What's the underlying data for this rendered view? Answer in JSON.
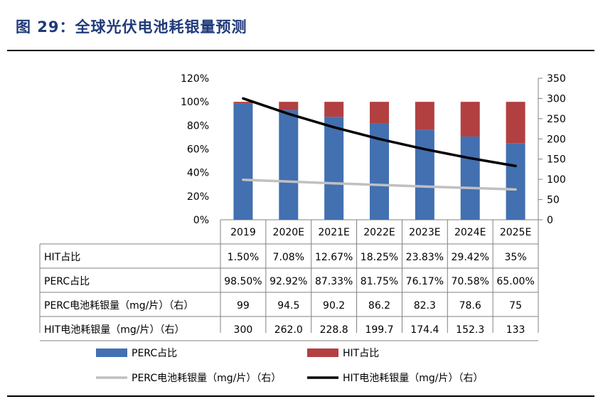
{
  "figure_title": "图 29：全球光伏电池耗银量预测",
  "colors": {
    "perc_bar": "#4270b0",
    "hit_bar": "#b24041",
    "perc_line": "#c0c0c0",
    "hit_line": "#000000",
    "title": "#1f3a7a"
  },
  "chart_data": {
    "type": "bar",
    "stacked": true,
    "categories": [
      "2019",
      "2020E",
      "2021E",
      "2022E",
      "2023E",
      "2024E",
      "2025E"
    ],
    "left_axis": {
      "ticks": [
        "0%",
        "20%",
        "40%",
        "60%",
        "80%",
        "100%",
        "120%"
      ],
      "ylim": [
        0,
        120
      ]
    },
    "right_axis": {
      "ticks": [
        "0",
        "50",
        "100",
        "150",
        "200",
        "250",
        "300",
        "350"
      ],
      "ylim": [
        0,
        350
      ]
    },
    "series": [
      {
        "name": "PERC占比",
        "kind": "bar",
        "axis": "left",
        "values": [
          98.5,
          92.92,
          87.33,
          81.75,
          76.17,
          70.58,
          65.0
        ]
      },
      {
        "name": "HIT占比",
        "kind": "bar",
        "axis": "left",
        "values": [
          1.5,
          7.08,
          12.67,
          18.25,
          23.83,
          29.42,
          35
        ]
      },
      {
        "name": "PERC电池耗银量（mg/片）（右）",
        "kind": "line",
        "axis": "right",
        "values": [
          99,
          94.5,
          90.2,
          86.2,
          82.3,
          78.6,
          75
        ]
      },
      {
        "name": "HIT电池耗银量（mg/片）（右）",
        "kind": "line",
        "axis": "right",
        "values": [
          300,
          262.0,
          228.8,
          199.7,
          174.4,
          152.3,
          133
        ]
      }
    ],
    "table": {
      "rows": [
        {
          "label": "HIT占比",
          "cells": [
            "1.50%",
            "7.08%",
            "12.67%",
            "18.25%",
            "23.83%",
            "29.42%",
            "35%"
          ]
        },
        {
          "label": "PERC占比",
          "cells": [
            "98.50%",
            "92.92%",
            "87.33%",
            "81.75%",
            "76.17%",
            "70.58%",
            "65.00%"
          ]
        },
        {
          "label": "PERC电池耗银量（mg/片）（右）",
          "cells": [
            "99",
            "94.5",
            "90.2",
            "86.2",
            "82.3",
            "78.6",
            "75"
          ]
        },
        {
          "label": "HIT电池耗银量（mg/片）（右）",
          "cells": [
            "300",
            "262.0",
            "228.8",
            "199.7",
            "174.4",
            "152.3",
            "133"
          ]
        }
      ]
    },
    "legend": [
      "PERC占比",
      "HIT占比",
      "PERC电池耗银量（mg/片）（右）",
      "HIT电池耗银量（mg/片）（右）"
    ]
  }
}
